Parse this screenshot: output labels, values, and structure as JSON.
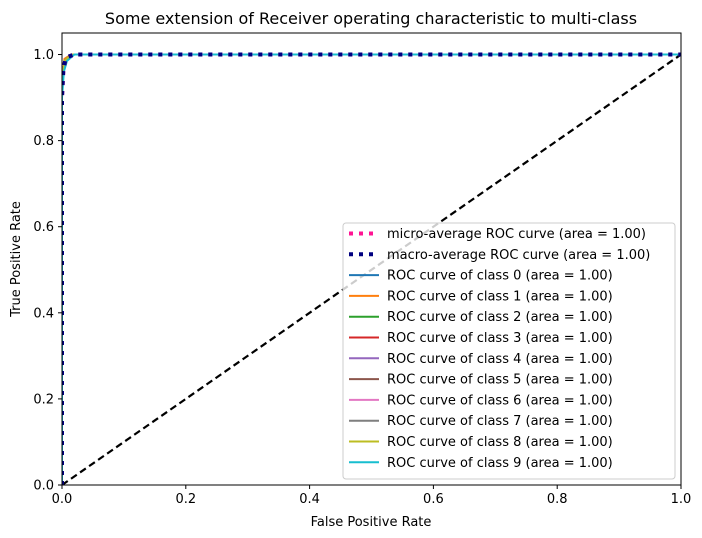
{
  "chart_data": {
    "type": "line",
    "title": "Some extension of Receiver operating characteristic to multi-class",
    "xlabel": "False Positive Rate",
    "ylabel": "True Positive Rate",
    "xlim": [
      0.0,
      1.0
    ],
    "ylim": [
      0.0,
      1.05
    ],
    "xticks": [
      0.0,
      0.2,
      0.4,
      0.6,
      0.8,
      1.0
    ],
    "yticks": [
      0.0,
      0.2,
      0.4,
      0.6,
      0.8,
      1.0
    ],
    "xtick_labels": [
      "0.0",
      "0.2",
      "0.4",
      "0.6",
      "0.8",
      "1.0"
    ],
    "ytick_labels": [
      "0.0",
      "0.2",
      "0.4",
      "0.6",
      "0.8",
      "1.0"
    ],
    "grid": false,
    "legend_position": "lower-right",
    "series": [
      {
        "name": "micro-average ROC curve (area = 1.00)",
        "color": "#ff1493",
        "style": "dotted",
        "x": [
          0.0,
          0.0,
          0.002,
          0.005,
          0.01,
          0.02,
          1.0
        ],
        "y": [
          0.0,
          0.9,
          0.96,
          0.985,
          0.995,
          1.0,
          1.0
        ]
      },
      {
        "name": "macro-average ROC curve (area = 1.00)",
        "color": "#000080",
        "style": "dotted",
        "x": [
          0.0,
          0.0,
          0.002,
          0.005,
          0.01,
          0.02,
          1.0
        ],
        "y": [
          0.0,
          0.9,
          0.96,
          0.985,
          0.995,
          1.0,
          1.0
        ]
      },
      {
        "name": "ROC curve of class 0 (area = 1.00)",
        "color": "#1f77b4",
        "style": "solid",
        "x": [
          0.0,
          0.0,
          0.004,
          0.015,
          1.0
        ],
        "y": [
          0.0,
          0.93,
          0.985,
          1.0,
          1.0
        ]
      },
      {
        "name": "ROC curve of class 1 (area = 1.00)",
        "color": "#ff7f0e",
        "style": "solid",
        "x": [
          0.0,
          0.0,
          0.004,
          0.015,
          1.0
        ],
        "y": [
          0.0,
          0.93,
          0.99,
          1.0,
          1.0
        ]
      },
      {
        "name": "ROC curve of class 2 (area = 1.00)",
        "color": "#2ca02c",
        "style": "solid",
        "x": [
          0.0,
          0.0,
          0.004,
          0.015,
          1.0
        ],
        "y": [
          0.0,
          0.93,
          0.985,
          1.0,
          1.0
        ]
      },
      {
        "name": "ROC curve of class 3 (area = 1.00)",
        "color": "#d62728",
        "style": "solid",
        "x": [
          0.0,
          0.0,
          0.004,
          0.015,
          1.0
        ],
        "y": [
          0.0,
          0.93,
          0.985,
          1.0,
          1.0
        ]
      },
      {
        "name": "ROC curve of class 4 (area = 1.00)",
        "color": "#9467bd",
        "style": "solid",
        "x": [
          0.0,
          0.0,
          0.004,
          0.015,
          1.0
        ],
        "y": [
          0.0,
          0.93,
          0.985,
          1.0,
          1.0
        ]
      },
      {
        "name": "ROC curve of class 5 (area = 1.00)",
        "color": "#8c564b",
        "style": "solid",
        "x": [
          0.0,
          0.0,
          0.004,
          0.015,
          1.0
        ],
        "y": [
          0.0,
          0.93,
          0.985,
          1.0,
          1.0
        ]
      },
      {
        "name": "ROC curve of class 6 (area = 1.00)",
        "color": "#e377c2",
        "style": "solid",
        "x": [
          0.0,
          0.0,
          0.004,
          0.015,
          1.0
        ],
        "y": [
          0.0,
          0.93,
          0.985,
          1.0,
          1.0
        ]
      },
      {
        "name": "ROC curve of class 7 (area = 1.00)",
        "color": "#7f7f7f",
        "style": "solid",
        "x": [
          0.0,
          0.0,
          0.004,
          0.015,
          1.0
        ],
        "y": [
          0.0,
          0.93,
          0.985,
          1.0,
          1.0
        ]
      },
      {
        "name": "ROC curve of class 8 (area = 1.00)",
        "color": "#bcbd22",
        "style": "solid",
        "x": [
          0.0,
          0.0,
          0.004,
          0.015,
          1.0
        ],
        "y": [
          0.0,
          0.93,
          0.985,
          1.0,
          1.0
        ]
      },
      {
        "name": "ROC curve of class 9 (area = 1.00)",
        "color": "#17becf",
        "style": "solid",
        "x": [
          0.0,
          0.0,
          0.003,
          0.008,
          0.02,
          1.0
        ],
        "y": [
          0.0,
          0.9,
          0.96,
          0.985,
          1.0,
          1.0
        ]
      }
    ],
    "reference_line": {
      "x": [
        0.0,
        1.0
      ],
      "y": [
        0.0,
        1.0
      ],
      "color": "#000000",
      "style": "dashed"
    }
  }
}
